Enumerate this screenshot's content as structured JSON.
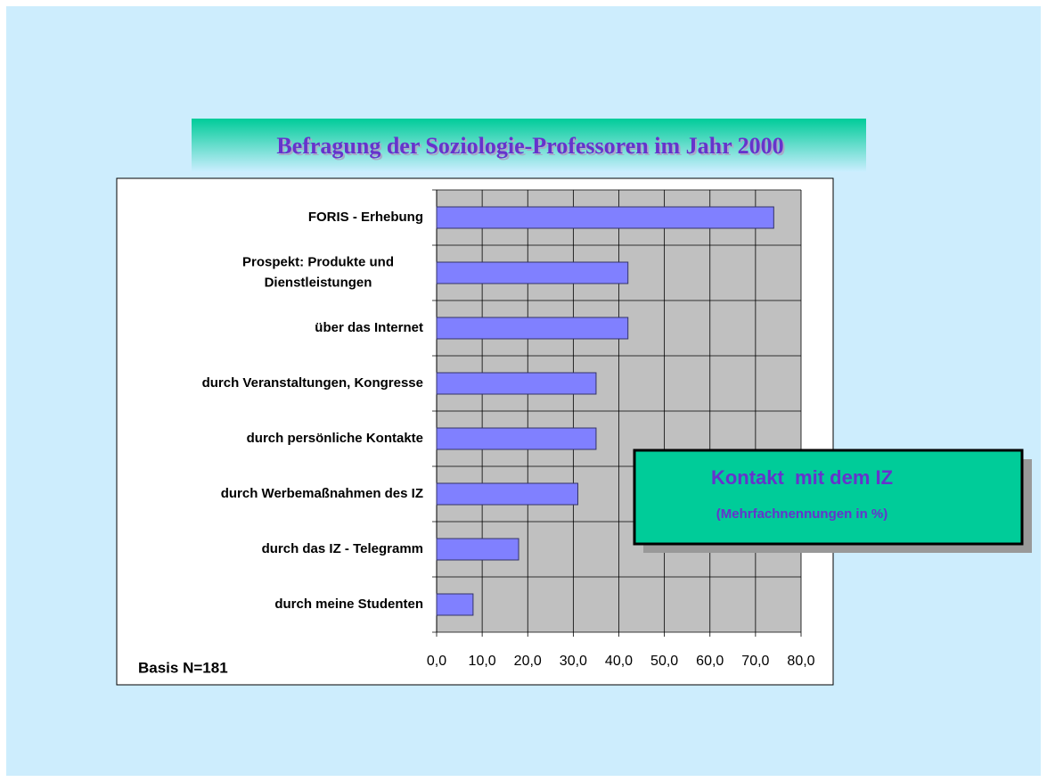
{
  "chart_data": {
    "type": "barh",
    "title": "Befragung der Soziologie-Professoren im Jahr 2000",
    "box_title": "Kontakt  mit dem IZ",
    "box_subtitle": "(Mehrfachnennungen in %)",
    "annotation": "Basis N=181",
    "categories": [
      "FORIS - Erhebung",
      "Prospekt: Produkte und\nDienstleistungen",
      "über das Internet",
      "durch Veranstaltungen, Kongresse",
      "durch persönliche Kontakte",
      "durch Werbemaßnahmen des IZ",
      "durch das IZ - Telegramm",
      "durch meine Studenten"
    ],
    "values": [
      74,
      42,
      42,
      35,
      35,
      31,
      18,
      8
    ],
    "color": "#8080ff",
    "xlim": [
      0,
      80
    ],
    "xticks": [
      {
        "value": 0,
        "label": "0,0"
      },
      {
        "value": 10,
        "label": "10,0"
      },
      {
        "value": 20,
        "label": "20,0"
      },
      {
        "value": 30,
        "label": "30,0"
      },
      {
        "value": 40,
        "label": "40,0"
      },
      {
        "value": 50,
        "label": "50,0"
      },
      {
        "value": 60,
        "label": "60,0"
      },
      {
        "value": 70,
        "label": "70,0"
      },
      {
        "value": 80,
        "label": "80,0"
      }
    ],
    "grid": true
  }
}
